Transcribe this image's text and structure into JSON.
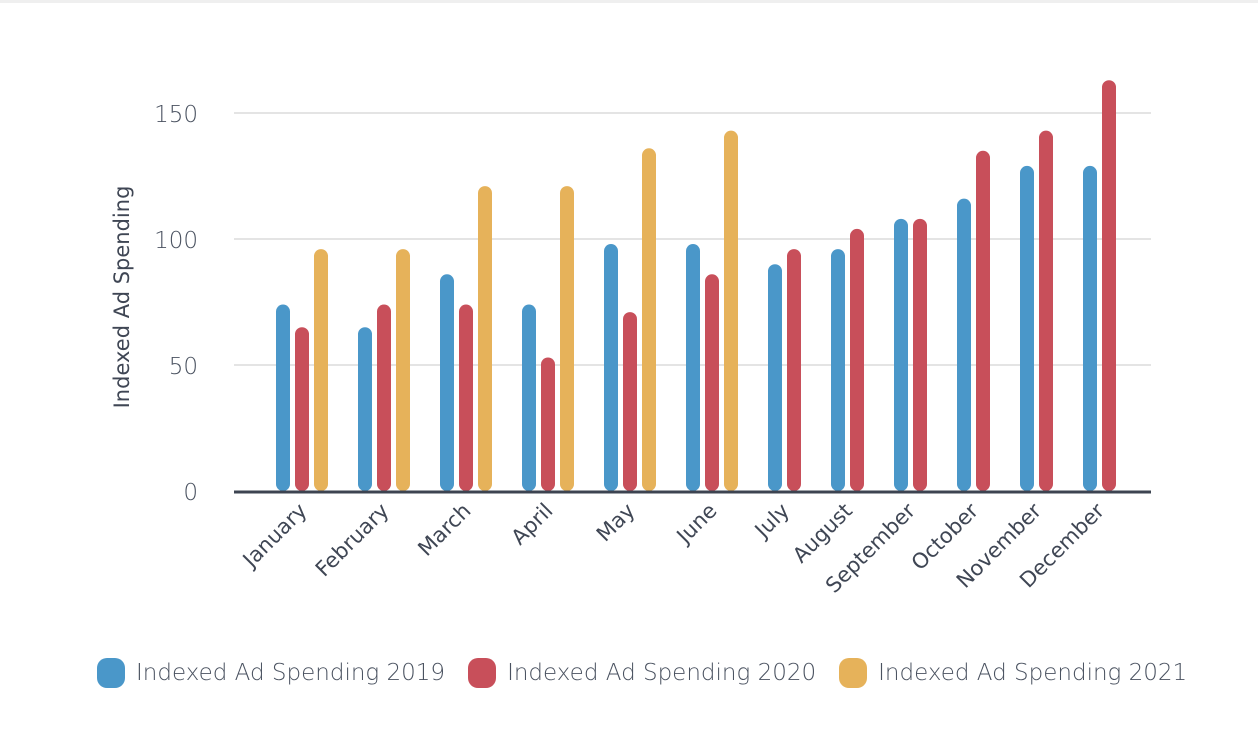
{
  "chart_data": {
    "type": "bar",
    "title": "",
    "xlabel": "",
    "ylabel": "Indexed Ad Spending",
    "ylim": [
      0,
      165
    ],
    "yticks": [
      0,
      50,
      100,
      150
    ],
    "grid": true,
    "legend_position": "bottom",
    "categories": [
      "January",
      "February",
      "March",
      "April",
      "May",
      "June",
      "July",
      "August",
      "September",
      "October",
      "November",
      "December"
    ],
    "series": [
      {
        "name": "Indexed Ad Spending 2019",
        "color": "#4a97c9",
        "values": [
          74,
          65,
          86,
          74,
          98,
          98,
          90,
          96,
          108,
          116,
          129,
          129
        ]
      },
      {
        "name": "Indexed Ad Spending 2020",
        "color": "#c84f5a",
        "values": [
          65,
          74,
          74,
          53,
          71,
          86,
          96,
          104,
          108,
          135,
          143,
          163
        ]
      },
      {
        "name": "Indexed Ad Spending 2021",
        "color": "#e6b25a",
        "values": [
          96,
          96,
          121,
          121,
          136,
          143,
          null,
          null,
          null,
          null,
          null,
          null
        ]
      }
    ]
  }
}
